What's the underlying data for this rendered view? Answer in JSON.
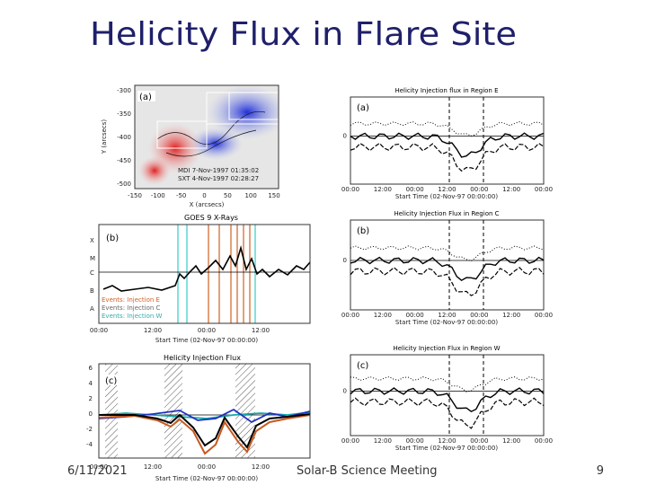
{
  "title": "Helicity Flux in Flare Site",
  "footer": {
    "date": "6/11/2021",
    "event": "Solar-B Science Meeting",
    "page": "9"
  },
  "magnetogram": {
    "label": "(a)",
    "x_axis": "X (arcsecs)",
    "y_axis": "Y (arcsecs)",
    "xticks": [
      "-150",
      "-100",
      "-50",
      "0",
      "50",
      "100",
      "150"
    ],
    "yticks": [
      "-300",
      "-350",
      "-400",
      "-450",
      "-500"
    ],
    "annotations": [
      "MDI 7-Nov-1997 01:35:02",
      "SXT 4-Nov-1997 02:28:27"
    ]
  },
  "goes": {
    "title": "GOES 9 X-Rays",
    "label": "(b)",
    "classes": [
      "X",
      "M",
      "C",
      "B",
      "A"
    ],
    "legend": [
      "Events: Injection E",
      "Events: Injection C",
      "Events: Injection W"
    ],
    "xticks": [
      "00:00",
      "12:00",
      "00:00",
      "12:00"
    ],
    "x_axis": "Start Time (02-Nov-97 00:00:00)"
  },
  "helicity": {
    "title": "Helicity Injection Flux",
    "label": "(c)",
    "yticks": [
      "6",
      "4",
      "2",
      "0",
      "-2",
      "-4"
    ],
    "xticks": [
      "00:00",
      "12:00",
      "00:00",
      "12:00"
    ],
    "x_axis": "Start Time (02-Nov-97 00:00:00)"
  },
  "regions": [
    {
      "title": "Helicity Injection flux in Region E",
      "label": "(a)",
      "ytick": "0"
    },
    {
      "title": "Helicity Injection Flux in Region C",
      "label": "(b)",
      "ytick": "0"
    },
    {
      "title": "Helicity Injection Flux in Region W",
      "label": "(c)",
      "ytick": "0"
    }
  ],
  "region_xticks": [
    "00:00",
    "12:00",
    "00:00",
    "12:00",
    "00:00",
    "12:00",
    "00:00"
  ],
  "region_x_axis": "Start Time (02-Nov-97 00:00:00)"
}
